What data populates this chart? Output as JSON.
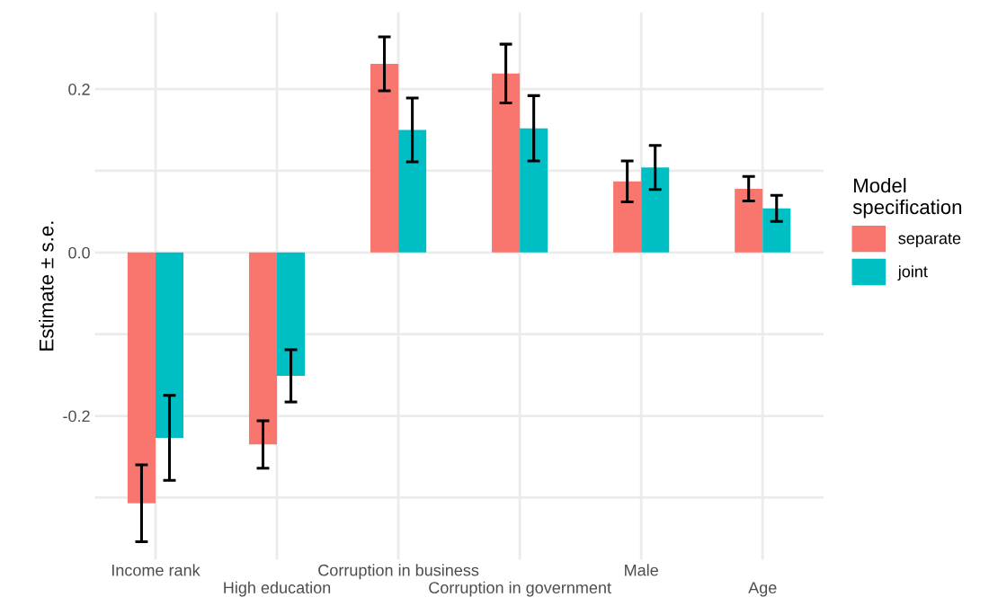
{
  "chart_data": {
    "type": "bar",
    "ylabel": "Estimate ± s.e.",
    "legend_title": "Model\nspecification",
    "categories": [
      "Income rank",
      "High education",
      "Corruption in business",
      "Corruption in government",
      "Male",
      "Age"
    ],
    "series": [
      {
        "name": "separate",
        "color": "#f8766d",
        "values": [
          -0.307,
          -0.235,
          0.231,
          0.219,
          0.087,
          0.078
        ],
        "errors": [
          0.047,
          0.029,
          0.033,
          0.036,
          0.025,
          0.015
        ]
      },
      {
        "name": "joint",
        "color": "#00bfc4",
        "values": [
          -0.227,
          -0.151,
          0.15,
          0.152,
          0.104,
          0.054
        ],
        "errors": [
          0.052,
          0.032,
          0.039,
          0.04,
          0.027,
          0.016
        ]
      }
    ],
    "ylim": [
      -0.376,
      0.294
    ],
    "yticks": [
      {
        "value": -0.3,
        "label": null
      },
      {
        "value": -0.2,
        "label": "-0.2"
      },
      {
        "value": -0.1,
        "label": null
      },
      {
        "value": 0,
        "label": "0.0"
      },
      {
        "value": 0.1,
        "label": null
      },
      {
        "value": 0.2,
        "label": "0.2"
      }
    ],
    "grid": true,
    "legend": "right"
  }
}
